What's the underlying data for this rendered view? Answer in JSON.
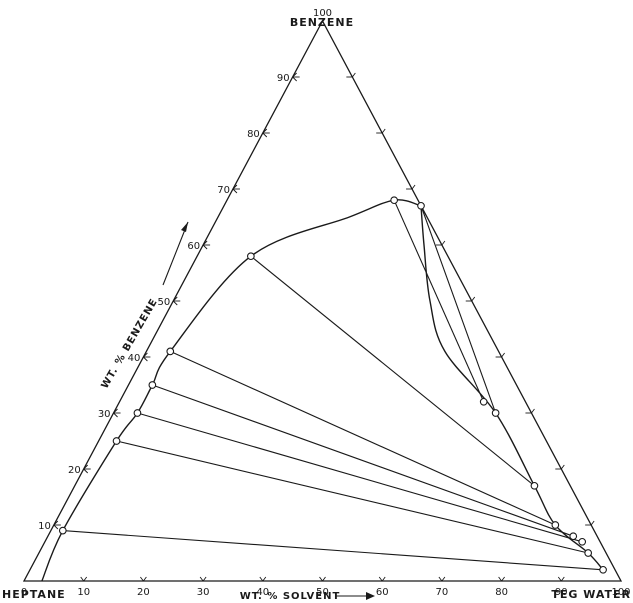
{
  "chart_data": {
    "type": "scatter",
    "diagram": "ternary",
    "vertex_labels": {
      "top": "BENZENE",
      "left": "HEPTANE",
      "right": "TEG WATER"
    },
    "axis_labels": {
      "benzene": "WT. % BENZENE",
      "solvent": "WT. % SOLVENT"
    },
    "ticks": {
      "bottom": [
        "0",
        "10",
        "20",
        "30",
        "40",
        "50",
        "60",
        "70",
        "80",
        "90",
        "100"
      ],
      "left": [
        "10",
        "20",
        "30",
        "40",
        "50",
        "60",
        "70",
        "80",
        "90",
        "100"
      ]
    },
    "binodal_raffinate": [
      {
        "benzene": 0,
        "solvent": 3
      },
      {
        "benzene": 9,
        "solvent": 2
      },
      {
        "benzene": 25,
        "solvent": 3
      },
      {
        "benzene": 30,
        "solvent": 4
      },
      {
        "benzene": 35,
        "solvent": 4
      },
      {
        "benzene": 41,
        "solvent": 4
      },
      {
        "benzene": 58,
        "solvent": 9
      },
      {
        "benzene": 65,
        "solvent": 22
      },
      {
        "benzene": 68,
        "solvent": 28
      },
      {
        "benzene": 67,
        "solvent": 33
      }
    ],
    "binodal_extract": [
      {
        "benzene": 67,
        "solvent": 33
      },
      {
        "benzene": 60,
        "solvent": 37
      },
      {
        "benzene": 50,
        "solvent": 43
      },
      {
        "benzene": 41,
        "solvent": 50
      },
      {
        "benzene": 30,
        "solvent": 64
      },
      {
        "benzene": 17,
        "solvent": 77
      },
      {
        "benzene": 10,
        "solvent": 84
      },
      {
        "benzene": 5,
        "solvent": 92
      },
      {
        "benzene": 2,
        "solvent": 96
      }
    ],
    "tie_lines": [
      {
        "raffinate": {
          "benzene": 9,
          "solvent": 2
        },
        "extract": {
          "benzene": 2,
          "solvent": 96
        }
      },
      {
        "raffinate": {
          "benzene": 25,
          "solvent": 3
        },
        "extract": {
          "benzene": 5,
          "solvent": 92
        }
      },
      {
        "raffinate": {
          "benzene": 30,
          "solvent": 4
        },
        "extract": {
          "benzene": 7,
          "solvent": 90
        }
      },
      {
        "raffinate": {
          "benzene": 35,
          "solvent": 4
        },
        "extract": {
          "benzene": 8,
          "solvent": 88
        }
      },
      {
        "raffinate": {
          "benzene": 41,
          "solvent": 4
        },
        "extract": {
          "benzene": 10,
          "solvent": 84
        }
      },
      {
        "raffinate": {
          "benzene": 58,
          "solvent": 9
        },
        "extract": {
          "benzene": 17,
          "solvent": 77
        }
      },
      {
        "raffinate": {
          "benzene": 68,
          "solvent": 28
        },
        "extract": {
          "benzene": 32,
          "solvent": 61
        }
      },
      {
        "raffinate": {
          "benzene": 67,
          "solvent": 33
        },
        "extract": {
          "benzene": 30,
          "solvent": 64
        }
      }
    ]
  }
}
